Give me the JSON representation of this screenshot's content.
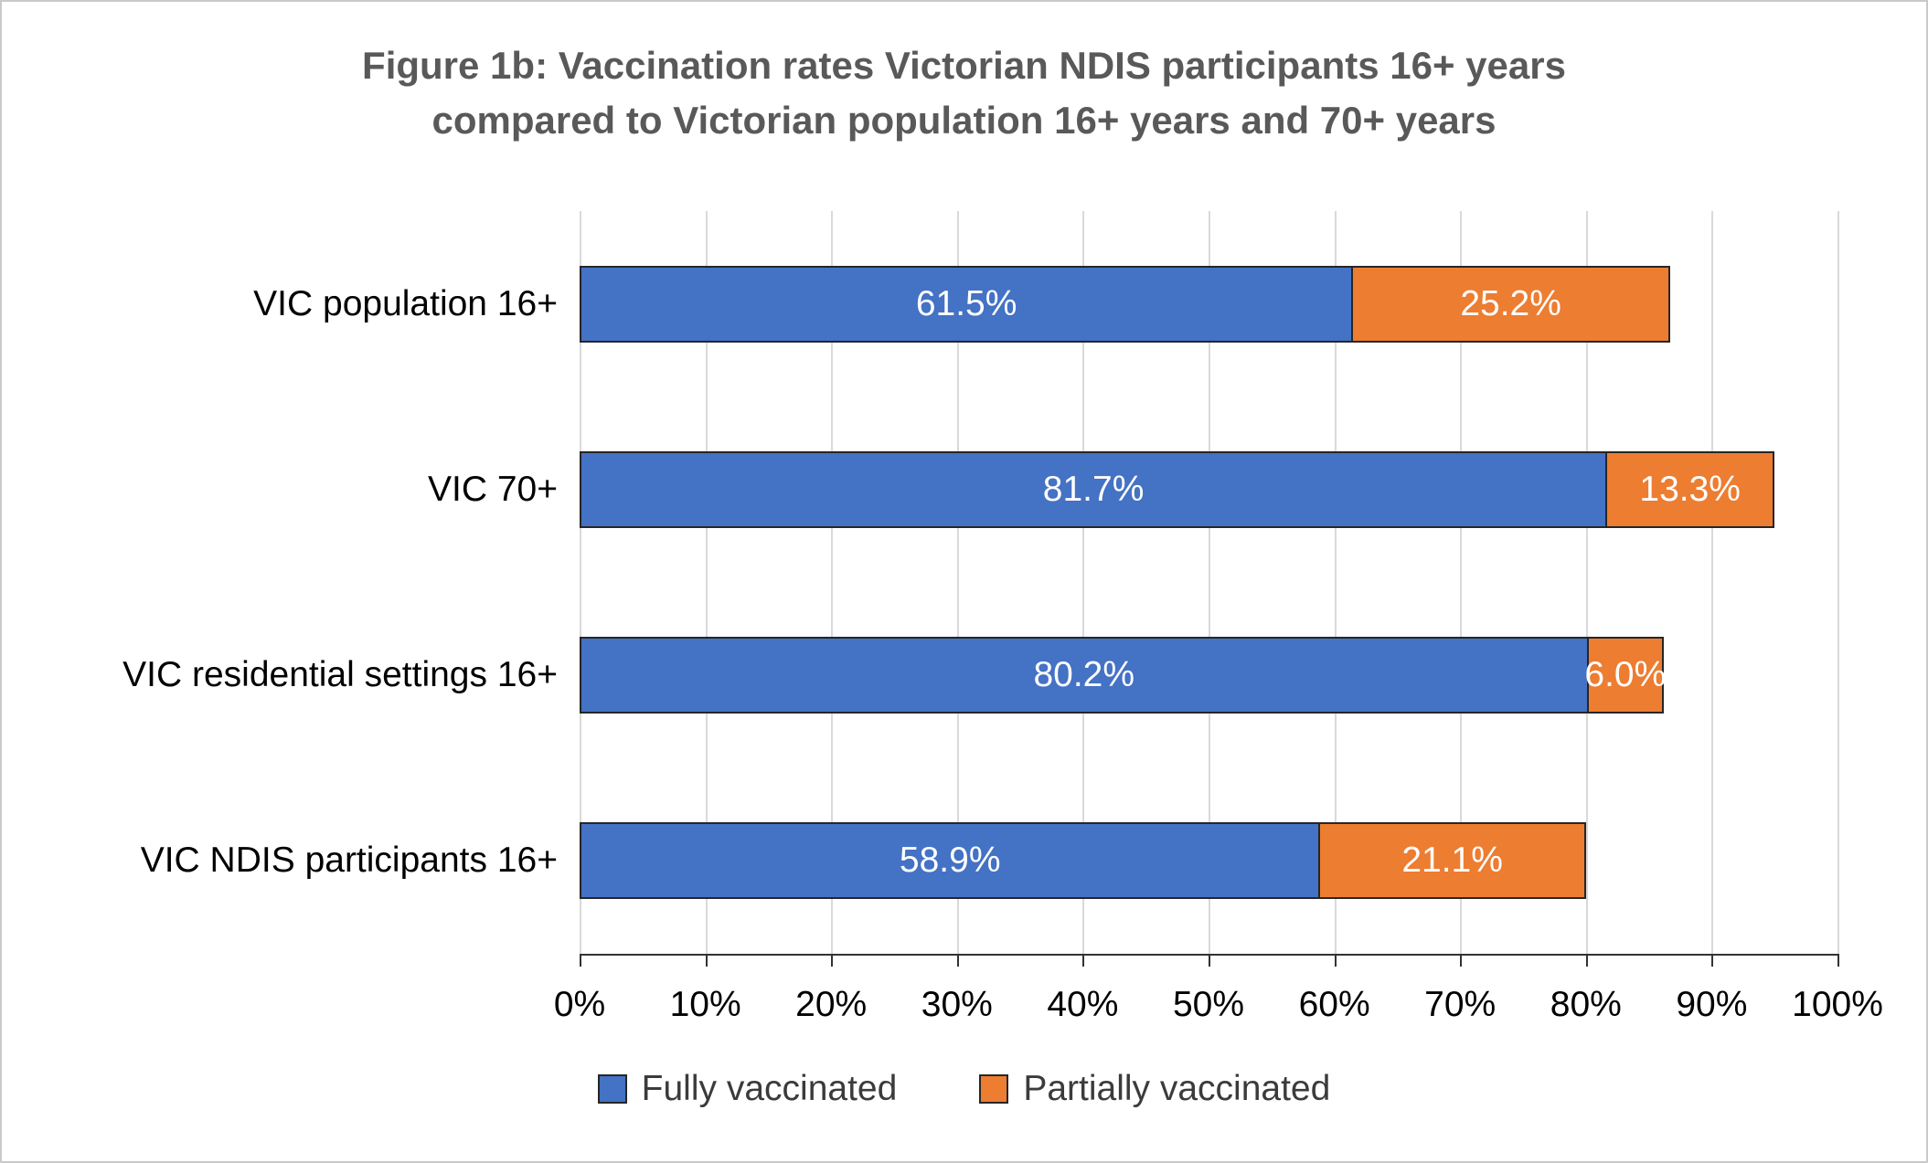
{
  "chart_data": {
    "type": "bar",
    "orientation": "horizontal",
    "stacked": true,
    "title": "Figure 1b: Vaccination rates Victorian NDIS participants 16+ years compared to Victorian population 16+ years and 70+ years",
    "title_lines": [
      "Figure 1b: Vaccination rates Victorian NDIS participants 16+ years",
      "compared to Victorian population 16+ years and 70+ years"
    ],
    "categories": [
      "VIC population 16+",
      "VIC 70+",
      "VIC residential settings 16+",
      "VIC NDIS participants 16+"
    ],
    "series": [
      {
        "name": "Fully vaccinated",
        "color": "#4472C4",
        "values": [
          61.5,
          81.7,
          80.2,
          58.9
        ],
        "labels": [
          "61.5%",
          "81.7%",
          "80.2%",
          "58.9%"
        ]
      },
      {
        "name": "Partially vaccinated",
        "color": "#ED7D31",
        "values": [
          25.2,
          13.3,
          6.0,
          21.1
        ],
        "labels": [
          "25.2%",
          "13.3%",
          "6.0%",
          "21.1%"
        ]
      }
    ],
    "x_axis": {
      "min": 0,
      "max": 100,
      "tick_step": 10,
      "tick_labels": [
        "0%",
        "10%",
        "20%",
        "30%",
        "40%",
        "50%",
        "60%",
        "70%",
        "80%",
        "90%",
        "100%"
      ]
    },
    "legend": {
      "position": "bottom",
      "entries": [
        "Fully vaccinated",
        "Partially vaccinated"
      ]
    },
    "grid": true,
    "value_label_color": "#ffffff",
    "title_color": "#595959"
  }
}
